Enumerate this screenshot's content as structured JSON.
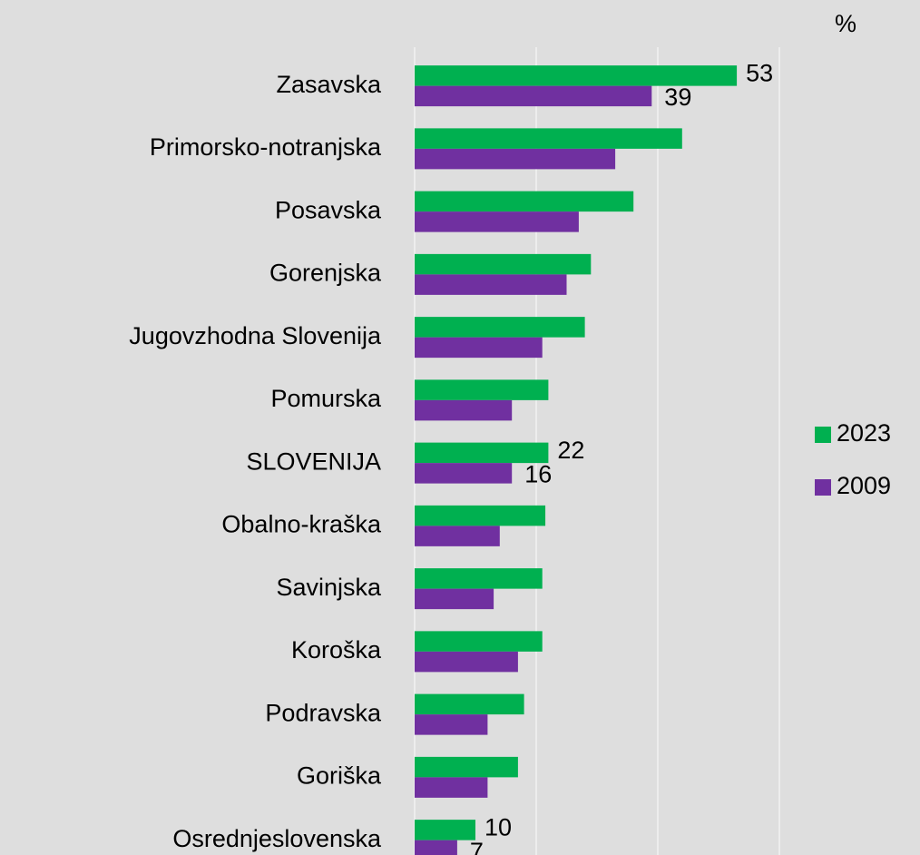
{
  "chart_data": {
    "type": "barh",
    "unit_label": "%",
    "categories": [
      "Zasavska",
      "Primorsko-notranjska",
      "Posavska",
      "Gorenjska",
      "Jugovzhodna Slovenija",
      "Pomurska",
      "SLOVENIJA",
      "Obalno-kraška",
      "Savinjska",
      "Koroška",
      "Podravska",
      "Goriška",
      "Osrednjeslovenska"
    ],
    "series": [
      {
        "name": "2023",
        "color": "#00b050",
        "values": [
          53,
          44,
          36,
          29,
          28,
          22,
          22,
          21.5,
          21,
          21,
          18,
          17,
          10
        ]
      },
      {
        "name": "2009",
        "color": "#7030a0",
        "values": [
          39,
          33,
          27,
          25,
          21,
          16,
          16,
          14,
          13,
          17,
          12,
          12,
          7
        ]
      }
    ],
    "labeled_categories": [
      0,
      6,
      12
    ],
    "xlim": [
      0,
      60
    ],
    "xticks": [
      0,
      20,
      40,
      60
    ],
    "grid": true,
    "legend": "right"
  }
}
